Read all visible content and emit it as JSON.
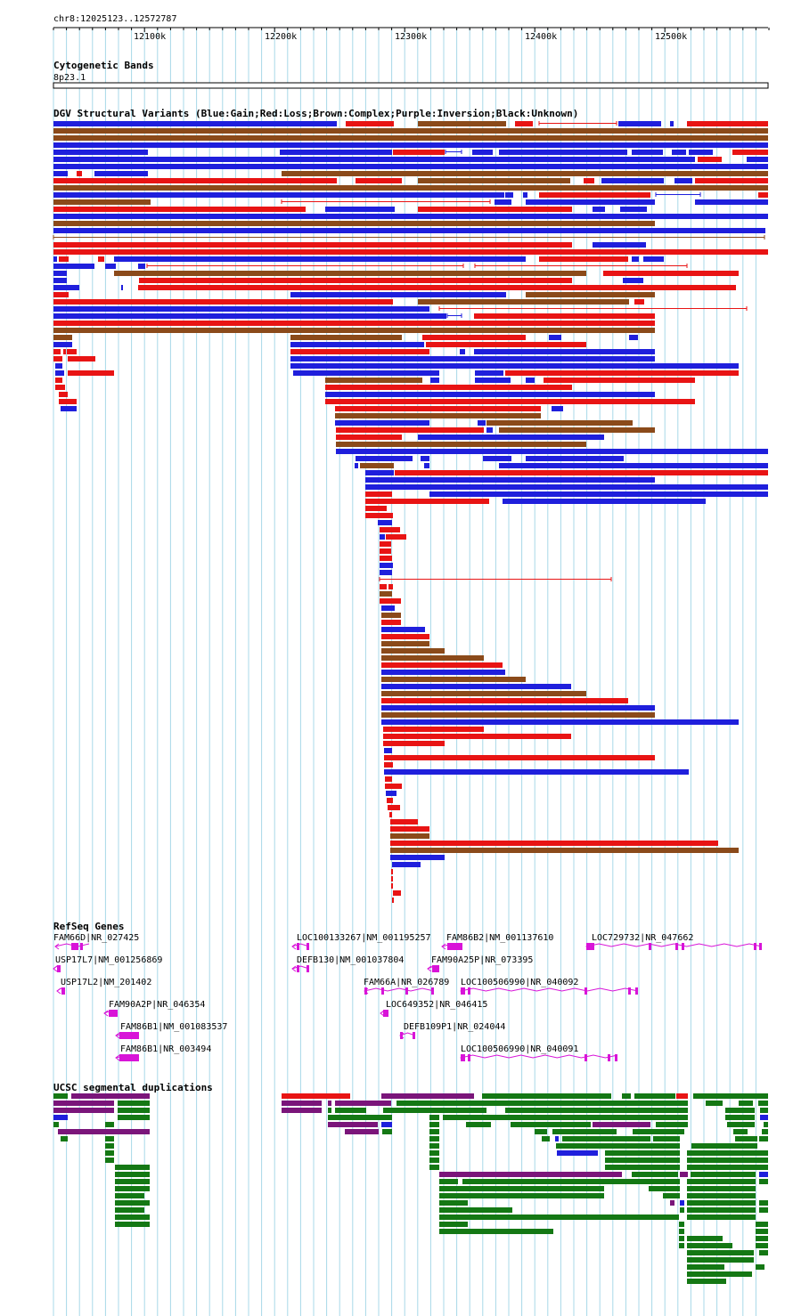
{
  "header": {
    "location": "chr8:12025123..12572787",
    "ruler_ticks": [
      "12100k",
      "12200k",
      "12300k",
      "12400k",
      "12500k"
    ]
  },
  "tracks": {
    "cytoband_title": "Cytogenetic Bands",
    "cytoband_name": "8p23.1",
    "dgv_title": "DGV Structural Variants (Blue:Gain;Red:Loss;Brown:Complex;Purple:Inversion;Black:Unknown)",
    "refseq_title": "RefSeq Genes",
    "segdup_title": "UCSC segmental duplications"
  },
  "genes": [
    {
      "label": "FAM66D|NR_027425"
    },
    {
      "label": "USP17L7|NM_001256869"
    },
    {
      "label": "USP17L2|NM_201402"
    },
    {
      "label": "FAM90A2P|NR_046354"
    },
    {
      "label": "FAM86B1|NM_001083537"
    },
    {
      "label": "FAM86B1|NR_003494"
    },
    {
      "label": "LOC100133267|NM_001195257"
    },
    {
      "label": "DEFB130|NM_001037804"
    },
    {
      "label": "FAM86B2|NM_001137610"
    },
    {
      "label": "FAM90A25P|NR_073395"
    },
    {
      "label": "FAM66A|NR_026789"
    },
    {
      "label": "LOC649352|NR_046415"
    },
    {
      "label": "DEFB109P1|NR_024044"
    },
    {
      "label": "LOC100506990|NR_040092"
    },
    {
      "label": "LOC100506990|NR_040091"
    },
    {
      "label": "LOC729732|NR_047662"
    }
  ],
  "colors": {
    "gain": "#1f1fdc",
    "loss": "#e81414",
    "complex": "#8b4a1a",
    "inversion": "#7a157a",
    "segdup_green": "#147814",
    "gene": "#d814d8",
    "grid": "#a8d8e8"
  }
}
